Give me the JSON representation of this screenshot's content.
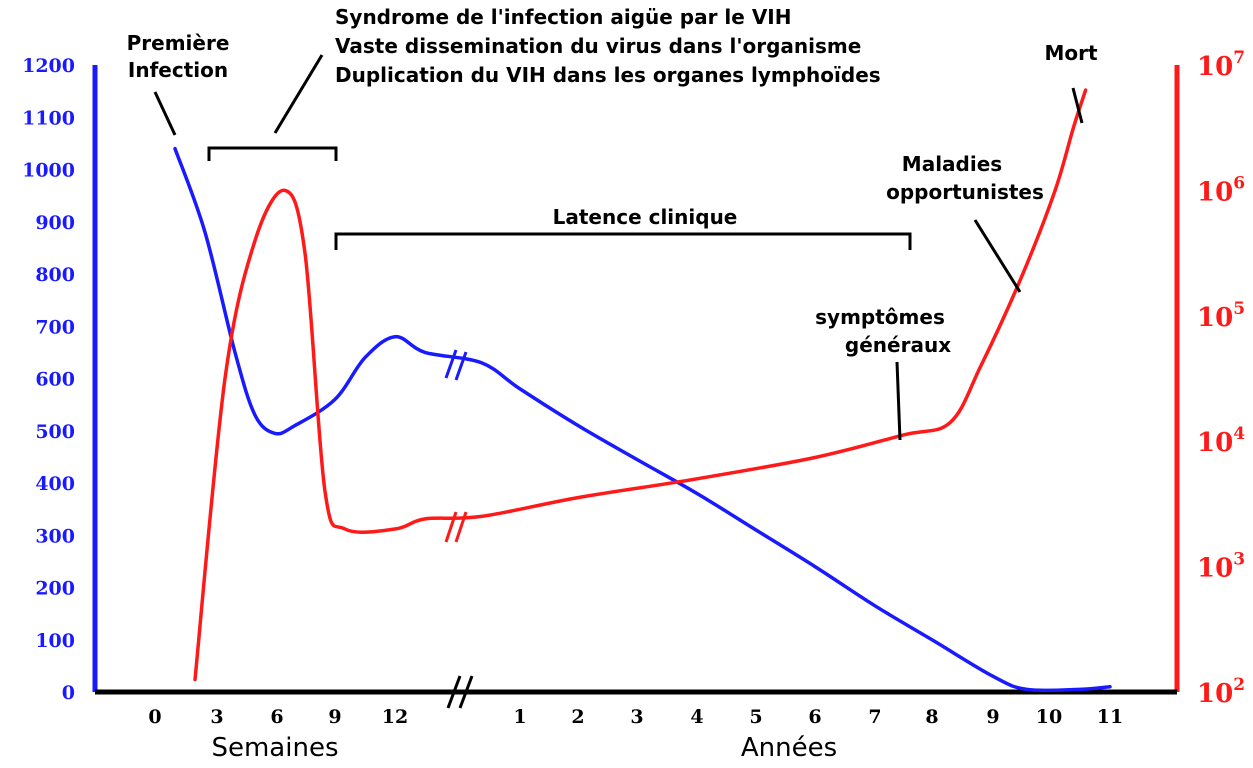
{
  "chart_data": {
    "type": "line",
    "x_segments": [
      {
        "label": "Semaines",
        "ticks": [
          "0",
          "3",
          "6",
          "9",
          "12"
        ]
      },
      {
        "label": "Années",
        "ticks": [
          "1",
          "2",
          "3",
          "4",
          "5",
          "6",
          "7",
          "8",
          "9",
          "10",
          "11"
        ]
      }
    ],
    "y_left": {
      "ticks": [
        "0",
        "100",
        "200",
        "300",
        "400",
        "500",
        "600",
        "700",
        "800",
        "900",
        "1000",
        "1100",
        "1200"
      ],
      "range": [
        0,
        1200
      ],
      "color": "#1a1aff"
    },
    "y_right": {
      "scale": "log",
      "ticks": [
        {
          "base": "10",
          "exp": "2"
        },
        {
          "base": "10",
          "exp": "3"
        },
        {
          "base": "10",
          "exp": "4"
        },
        {
          "base": "10",
          "exp": "5"
        },
        {
          "base": "10",
          "exp": "6"
        },
        {
          "base": "10",
          "exp": "7"
        }
      ],
      "range_log10": [
        2,
        7
      ],
      "color": "#ff1a1a"
    },
    "series": [
      {
        "color": "#1a1aff",
        "axis": "left",
        "points": [
          [
            "wk",
            1,
            1040
          ],
          [
            "wk",
            2.5,
            880
          ],
          [
            "wk",
            4,
            650
          ],
          [
            "wk",
            5,
            530
          ],
          [
            "wk",
            6,
            495
          ],
          [
            "wk",
            7,
            510
          ],
          [
            "wk",
            9,
            560
          ],
          [
            "wk",
            10.5,
            640
          ],
          [
            "wk",
            12,
            680
          ],
          [
            "wk",
            13.5,
            650
          ],
          [
            "yr",
            0.3,
            630
          ],
          [
            "yr",
            1,
            580
          ],
          [
            "yr",
            2,
            510
          ],
          [
            "yr",
            3,
            445
          ],
          [
            "yr",
            4,
            380
          ],
          [
            "yr",
            5,
            310
          ],
          [
            "yr",
            6,
            240
          ],
          [
            "yr",
            7,
            165
          ],
          [
            "yr",
            8,
            100
          ],
          [
            "yr",
            9,
            30
          ],
          [
            "yr",
            9.6,
            5
          ],
          [
            "yr",
            10.5,
            5
          ],
          [
            "yr",
            11,
            10
          ]
        ]
      },
      {
        "color": "#ff1a1a",
        "axis": "right",
        "points": [
          [
            "wk",
            2,
            2.1
          ],
          [
            "wk",
            3.5,
            4.5
          ],
          [
            "wk",
            5,
            5.6
          ],
          [
            "wk",
            6.5,
            6.0
          ],
          [
            "wk",
            7.5,
            5.5
          ],
          [
            "wk",
            8.5,
            3.6
          ],
          [
            "wk",
            9.5,
            3.3
          ],
          [
            "wk",
            12,
            3.3
          ],
          [
            "wk",
            13.5,
            3.38
          ],
          [
            "yr",
            0.3,
            3.4
          ],
          [
            "yr",
            2,
            3.55
          ],
          [
            "yr",
            4,
            3.7
          ],
          [
            "yr",
            6,
            3.87
          ],
          [
            "yr",
            7.5,
            4.05
          ],
          [
            "yr",
            8.3,
            4.15
          ],
          [
            "yr",
            8.8,
            4.6
          ],
          [
            "yr",
            9.5,
            5.3
          ],
          [
            "yr",
            10.1,
            6.0
          ],
          [
            "yr",
            10.4,
            6.5
          ],
          [
            "yr",
            10.6,
            6.8
          ]
        ]
      }
    ],
    "annotations": {
      "primary_infection": [
        "Première",
        "Infection"
      ],
      "acute_syndrome": [
        "Syndrome de l'infection aigüe par le VIH",
        "Vaste dissemination du virus dans l'organisme",
        "Duplication du VIH dans les organes lymphoïdes"
      ],
      "latency": "Latence clinique",
      "general_symptoms": [
        "symptômes",
        "généraux"
      ],
      "opportunistic": [
        "Maladies",
        "opportunistes"
      ],
      "death": "Mort"
    }
  }
}
